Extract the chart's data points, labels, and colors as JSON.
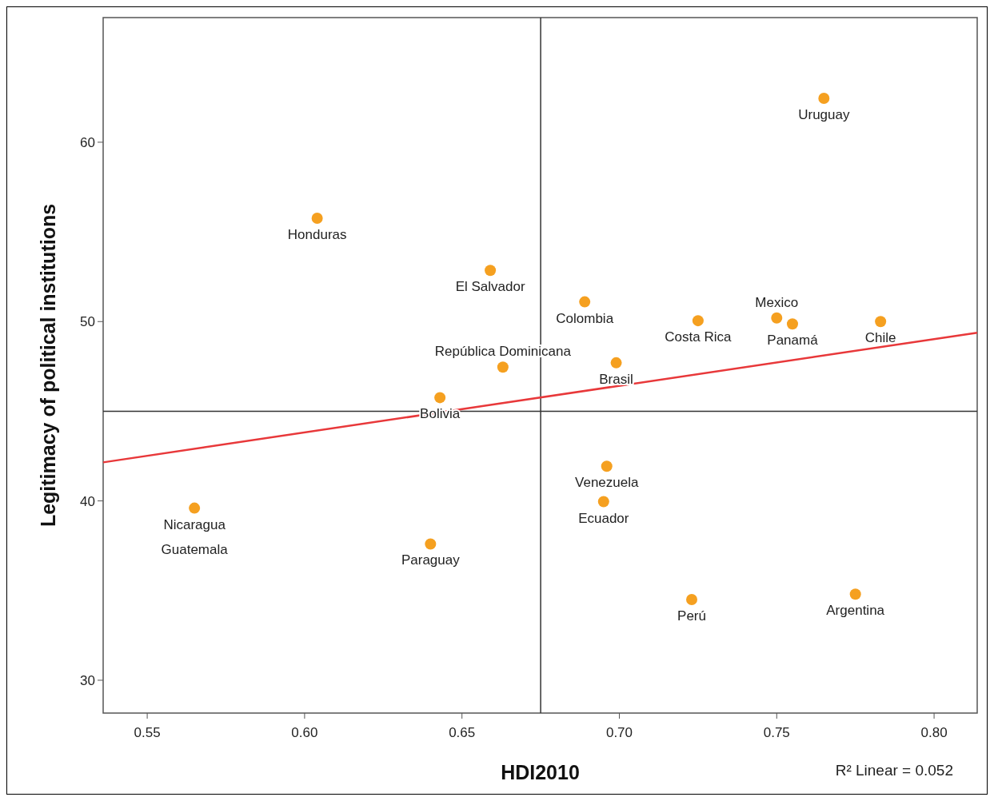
{
  "chart_data": {
    "type": "scatter",
    "xlabel": "HDI2010",
    "ylabel": "Legitimacy of political institutions",
    "xlim": [
      0.536,
      0.8137
    ],
    "ylim": [
      28.17,
      66.95
    ],
    "xticks": [
      {
        "value": 0.55,
        "label": "0.55"
      },
      {
        "value": 0.6,
        "label": "0.60"
      },
      {
        "value": 0.65,
        "label": "0.65"
      },
      {
        "value": 0.7,
        "label": "0.70"
      },
      {
        "value": 0.75,
        "label": "0.75"
      },
      {
        "value": 0.8,
        "label": "0.80"
      }
    ],
    "yticks": [
      30,
      40,
      50,
      60
    ],
    "grid": false,
    "series": [
      {
        "color": "#f5a020",
        "marker": "circle",
        "x": [
          0.765,
          0.604,
          0.659,
          0.689,
          0.725,
          0.755,
          0.75,
          0.783,
          0.663,
          0.699,
          0.643,
          0.696,
          0.695,
          0.565,
          0.64,
          0.723,
          0.775
        ],
        "values": [
          62.45,
          55.76,
          52.85,
          51.1,
          50.05,
          49.87,
          50.2,
          50.0,
          47.46,
          47.7,
          45.76,
          41.93,
          39.96,
          39.6,
          37.6,
          34.5,
          34.8
        ]
      },
      {
        "type": "line",
        "color": "#e8383a",
        "x": [
          0.536,
          0.8137
        ],
        "values": [
          42.15,
          49.38
        ],
        "line_style": "solid"
      }
    ],
    "ref_lines": [
      {
        "axis": "x",
        "value": 0.675,
        "color": "#333333"
      },
      {
        "axis": "y",
        "value": 45,
        "color": "#333333"
      }
    ],
    "annotations": [
      {
        "text": "Uruguay",
        "x": 0.765,
        "y": 62.45
      },
      {
        "text": "Honduras",
        "x": 0.604,
        "y": 55.76
      },
      {
        "text": "El Salvador",
        "x": 0.659,
        "y": 52.85
      },
      {
        "text": "Colombia",
        "x": 0.689,
        "y": 51.1
      },
      {
        "text": "Costa Rica",
        "x": 0.725,
        "y": 50.05
      },
      {
        "text": "Panamá",
        "x": 0.755,
        "y": 49.87
      },
      {
        "text": "Mexico",
        "x": 0.75,
        "y": 50.2
      },
      {
        "text": "Chile",
        "x": 0.783,
        "y": 50.0
      },
      {
        "text": "República Dominicana",
        "x": 0.663,
        "y": 47.46
      },
      {
        "text": "Brasil",
        "x": 0.699,
        "y": 47.7
      },
      {
        "text": "Bolivia",
        "x": 0.643,
        "y": 45.76
      },
      {
        "text": "Venezuela",
        "x": 0.696,
        "y": 41.93
      },
      {
        "text": "Ecuador",
        "x": 0.695,
        "y": 39.96
      },
      {
        "text": "Nicaragua",
        "x": 0.565,
        "y": 39.6
      },
      {
        "text": "Guatemala",
        "x": 0.565,
        "y": 39.6
      },
      {
        "text": "Paraguay",
        "x": 0.64,
        "y": 37.6
      },
      {
        "text": "Perú",
        "x": 0.723,
        "y": 34.5
      },
      {
        "text": "Argentina",
        "x": 0.775,
        "y": 34.8
      },
      "R² Linear = 0.052"
    ]
  }
}
